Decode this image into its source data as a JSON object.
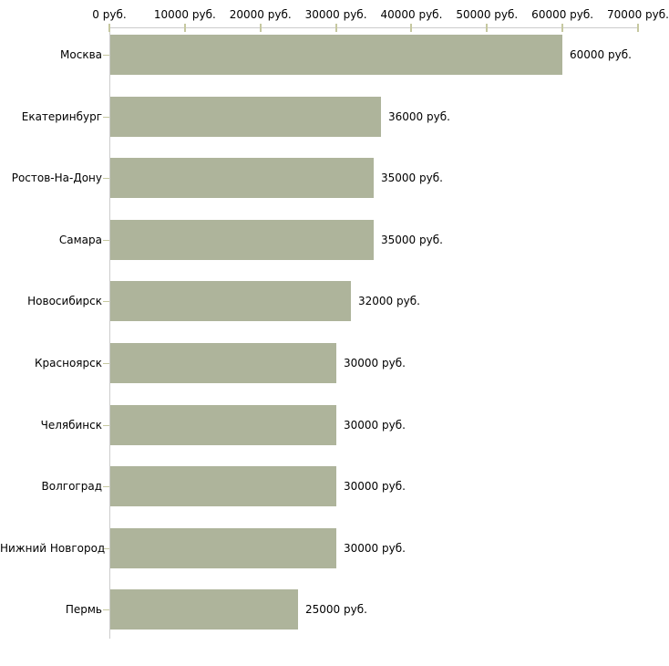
{
  "chart_data": {
    "type": "bar",
    "orientation": "horizontal",
    "title": "",
    "xlabel": "",
    "ylabel": "",
    "categories": [
      "Москва",
      "Екатеринбург",
      "Ростов-На-Дону",
      "Самара",
      "Новосибирск",
      "Красноярск",
      "Челябинск",
      "Волгоград",
      "Нижний Новгород",
      "Пермь"
    ],
    "values": [
      60000,
      36000,
      35000,
      35000,
      32000,
      30000,
      30000,
      30000,
      30000,
      25000
    ],
    "value_labels": [
      "60000 руб.",
      "36000 руб.",
      "35000 руб.",
      "35000 руб.",
      "32000 руб.",
      "30000 руб.",
      "30000 руб.",
      "30000 руб.",
      "30000 руб.",
      "25000 руб."
    ],
    "x_axis": {
      "position": "top",
      "range": [
        0,
        70000
      ],
      "ticks": [
        0,
        10000,
        20000,
        30000,
        40000,
        50000,
        60000,
        70000
      ],
      "tick_labels": [
        "0 руб.",
        "10000 руб.",
        "20000 руб.",
        "30000 руб.",
        "40000 руб.",
        "50000 руб.",
        "60000 руб.",
        "70000 руб."
      ]
    },
    "grid": "off",
    "legend": "none",
    "colors": {
      "bar": "#aeb49b",
      "axis_line": "#cccccc",
      "tick": "#c6c8a0",
      "text": "#000000",
      "background": "#ffffff"
    }
  }
}
